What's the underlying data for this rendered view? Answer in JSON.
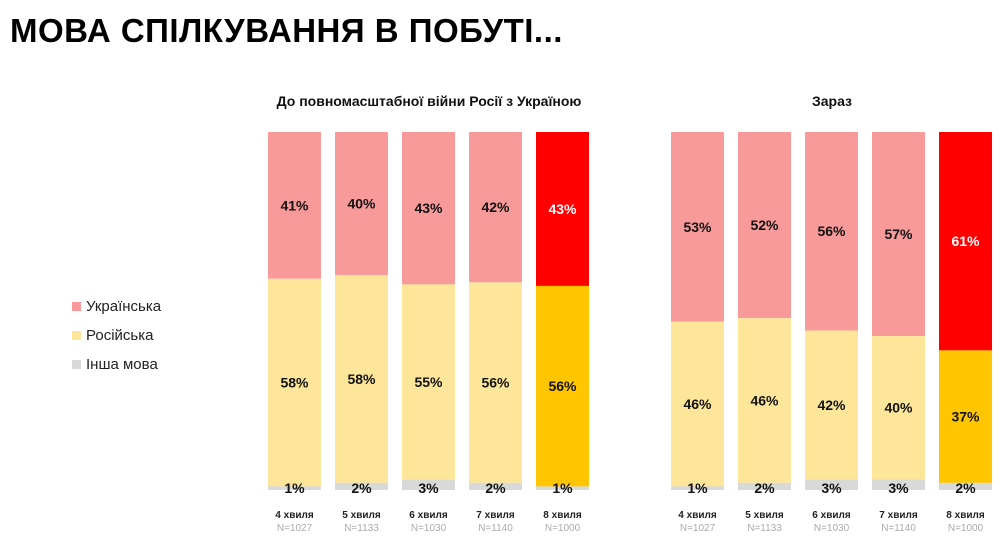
{
  "title": "МОВА СПІЛКУВАННЯ В ПОБУТІ...",
  "legend": [
    {
      "label": "Українська",
      "color": "#f99a9a"
    },
    {
      "label": "Російська",
      "color": "#fde69a"
    },
    {
      "label": "Інша мова",
      "color": "#d9d9d9"
    }
  ],
  "chart_data": [
    {
      "type": "bar",
      "stacked": true,
      "title": "До повномасштабної війни Росії з Україною",
      "categories": [
        "4 хвиля",
        "5 хвиля",
        "6 хвиля",
        "7 хвиля",
        "8 хвиля"
      ],
      "sample_sizes": [
        "N=1027",
        "N=1133",
        "N=1030",
        "N=1140",
        "N=1000"
      ],
      "series": [
        {
          "name": "Інша мова",
          "values": [
            1,
            2,
            3,
            2,
            1
          ]
        },
        {
          "name": "Російська",
          "values": [
            58,
            58,
            55,
            56,
            56
          ]
        },
        {
          "name": "Українська",
          "values": [
            41,
            40,
            43,
            42,
            43
          ]
        }
      ],
      "ylim": [
        0,
        100
      ],
      "highlight_index": 4
    },
    {
      "type": "bar",
      "stacked": true,
      "title": "Зараз",
      "categories": [
        "4 хвиля",
        "5 хвиля",
        "6 хвиля",
        "7 хвиля",
        "8 хвиля"
      ],
      "sample_sizes": [
        "N=1027",
        "N=1133",
        "N=1030",
        "N=1140",
        "N=1000"
      ],
      "series": [
        {
          "name": "Інша мова",
          "values": [
            1,
            2,
            3,
            3,
            2
          ]
        },
        {
          "name": "Російська",
          "values": [
            46,
            46,
            42,
            40,
            37
          ]
        },
        {
          "name": "Українська",
          "values": [
            53,
            52,
            56,
            57,
            61
          ]
        }
      ],
      "ylim": [
        0,
        100
      ],
      "highlight_index": 4
    }
  ],
  "colors": {
    "ukrainian": "#f99a9a",
    "russian": "#fde69a",
    "other": "#d9d9d9",
    "ukrainian_highlight": "#ff0000",
    "russian_highlight": "#ffc600",
    "other_highlight": "#d9d9d9"
  }
}
